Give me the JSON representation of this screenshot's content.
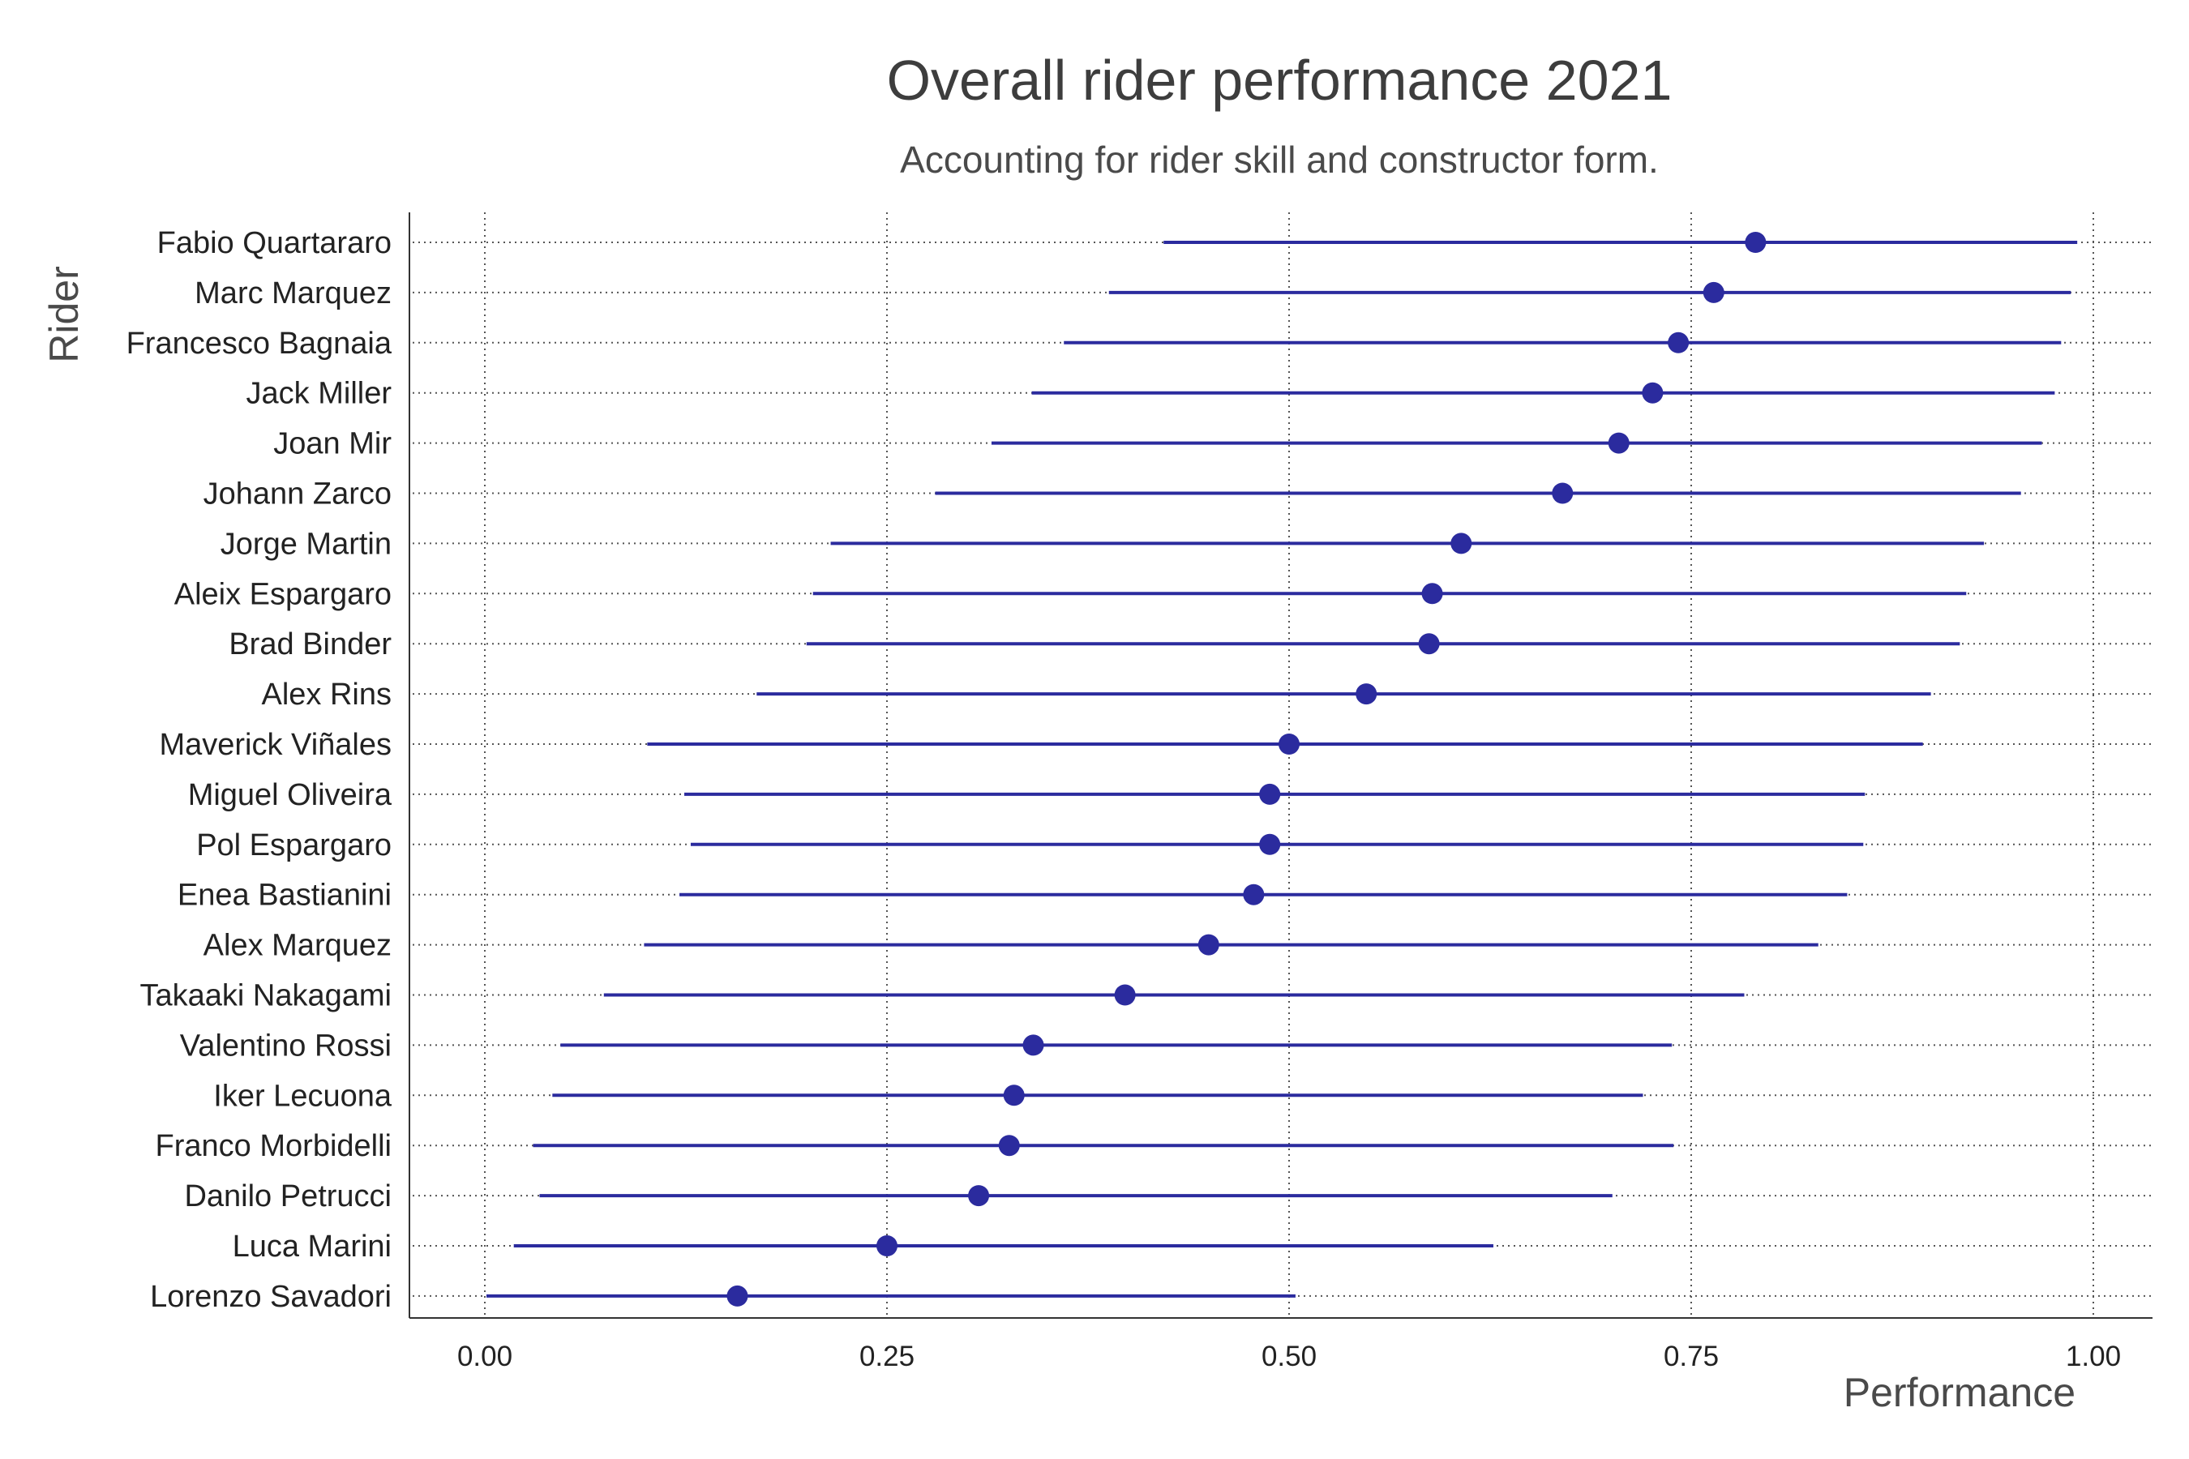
{
  "chart_data": {
    "type": "scatter",
    "title": "Overall rider performance 2021",
    "subtitle": "Accounting for rider skill and constructor form.",
    "xlabel": "Performance",
    "ylabel": "Rider",
    "xlim": [
      -0.05,
      1.04
    ],
    "xticks": [
      0.0,
      0.25,
      0.5,
      0.75,
      1.0
    ],
    "xtick_labels": [
      "0.00",
      "0.25",
      "0.50",
      "0.75",
      "1.00"
    ],
    "grid": true,
    "point_color": "#2b2b9e",
    "riders": [
      {
        "name": "Fabio Quartararo",
        "value": 0.79,
        "low": 0.422,
        "high": 0.99
      },
      {
        "name": "Marc Marquez",
        "value": 0.764,
        "low": 0.388,
        "high": 0.986
      },
      {
        "name": "Francesco Bagnaia",
        "value": 0.742,
        "low": 0.36,
        "high": 0.98
      },
      {
        "name": "Jack Miller",
        "value": 0.726,
        "low": 0.34,
        "high": 0.976
      },
      {
        "name": "Joan Mir",
        "value": 0.705,
        "low": 0.315,
        "high": 0.968
      },
      {
        "name": "Johann Zarco",
        "value": 0.67,
        "low": 0.28,
        "high": 0.955
      },
      {
        "name": "Jorge Martin",
        "value": 0.607,
        "low": 0.215,
        "high": 0.932
      },
      {
        "name": "Aleix Espargaro",
        "value": 0.589,
        "low": 0.204,
        "high": 0.921
      },
      {
        "name": "Brad Binder",
        "value": 0.587,
        "low": 0.2,
        "high": 0.917
      },
      {
        "name": "Alex Rins",
        "value": 0.548,
        "low": 0.169,
        "high": 0.899
      },
      {
        "name": "Maverick Viñales",
        "value": 0.5,
        "low": 0.101,
        "high": 0.894
      },
      {
        "name": "Miguel Oliveira",
        "value": 0.488,
        "low": 0.124,
        "high": 0.858
      },
      {
        "name": "Pol Espargaro",
        "value": 0.488,
        "low": 0.128,
        "high": 0.857
      },
      {
        "name": "Enea Bastianini",
        "value": 0.478,
        "low": 0.121,
        "high": 0.847
      },
      {
        "name": "Alex Marquez",
        "value": 0.45,
        "low": 0.099,
        "high": 0.829
      },
      {
        "name": "Takaaki Nakagami",
        "value": 0.398,
        "low": 0.074,
        "high": 0.783
      },
      {
        "name": "Valentino Rossi",
        "value": 0.341,
        "low": 0.047,
        "high": 0.738
      },
      {
        "name": "Iker Lecuona",
        "value": 0.329,
        "low": 0.042,
        "high": 0.72
      },
      {
        "name": "Franco Morbidelli",
        "value": 0.326,
        "low": 0.03,
        "high": 0.739
      },
      {
        "name": "Danilo Petrucci",
        "value": 0.307,
        "low": 0.034,
        "high": 0.701
      },
      {
        "name": "Luca Marini",
        "value": 0.25,
        "low": 0.018,
        "high": 0.627
      },
      {
        "name": "Lorenzo Savadori",
        "value": 0.157,
        "low": 0.001,
        "high": 0.504
      }
    ]
  }
}
